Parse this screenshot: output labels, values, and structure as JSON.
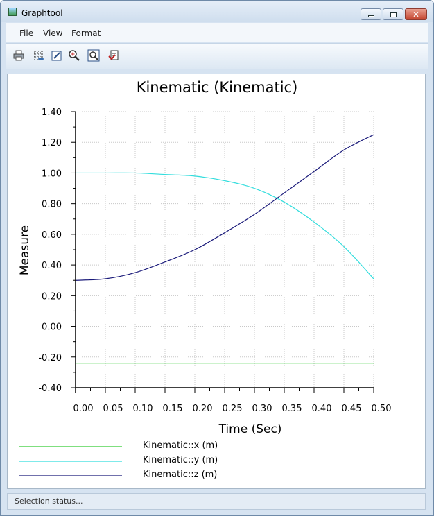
{
  "window": {
    "title": "Graphtool"
  },
  "menu": [
    {
      "label": "File",
      "accel": "F",
      "rest": "ile"
    },
    {
      "label": "View",
      "accel": "V",
      "rest": "iew"
    },
    {
      "label": "Format",
      "accel": "",
      "rest": "Format"
    }
  ],
  "toolbar": {
    "tools": [
      {
        "name": "print-icon"
      },
      {
        "name": "grid-settings-icon"
      },
      {
        "name": "edit-plot-icon"
      },
      {
        "name": "zoom-in-icon"
      },
      {
        "name": "zoom-fit-icon"
      },
      {
        "name": "export-icon"
      }
    ]
  },
  "status": {
    "text": "Selection status..."
  },
  "colors": {
    "x": "#33cc33",
    "y": "#33dddd",
    "z": "#1a1a7a",
    "grid": "#c8c8c8"
  },
  "chart_data": {
    "type": "line",
    "title": "Kinematic (Kinematic)",
    "xlabel": "Time (Sec)",
    "ylabel": "Measure",
    "xlim": [
      0,
      0.5
    ],
    "ylim": [
      -0.4,
      1.4
    ],
    "xticks": [
      0,
      0.05,
      0.1,
      0.15,
      0.2,
      0.25,
      0.3,
      0.35,
      0.4,
      0.45,
      0.5
    ],
    "xtick_labels": [
      "0.00",
      "0.05",
      "0.10",
      "0.15",
      "0.20",
      "0.25",
      "0.30",
      "0.35",
      "0.40",
      "0.45",
      "0.50"
    ],
    "yticks": [
      1.4,
      1.2,
      1.0,
      0.8,
      0.6,
      0.4,
      0.2,
      0.0,
      -0.2,
      -0.4
    ],
    "ytick_labels": [
      "1.40",
      "1.20",
      "1.00",
      "0.80",
      "0.60",
      "0.40",
      "0.20",
      "0.00",
      "-0.20",
      "-0.40"
    ],
    "grid": true,
    "legend_position": "bottom-left",
    "x": [
      0,
      0.05,
      0.1,
      0.15,
      0.2,
      0.25,
      0.3,
      0.35,
      0.4,
      0.45,
      0.5
    ],
    "series": [
      {
        "name": "Kinematic::x (m)",
        "values": [
          -0.24,
          -0.24,
          -0.24,
          -0.24,
          -0.24,
          -0.24,
          -0.24,
          -0.24,
          -0.24,
          -0.24,
          -0.24
        ]
      },
      {
        "name": "Kinematic::y (m)",
        "values": [
          1.0,
          1.0,
          1.0,
          0.99,
          0.98,
          0.95,
          0.9,
          0.81,
          0.68,
          0.52,
          0.31
        ]
      },
      {
        "name": "Kinematic::z (m)",
        "values": [
          0.3,
          0.31,
          0.35,
          0.42,
          0.5,
          0.61,
          0.73,
          0.87,
          1.01,
          1.15,
          1.25
        ]
      }
    ]
  }
}
